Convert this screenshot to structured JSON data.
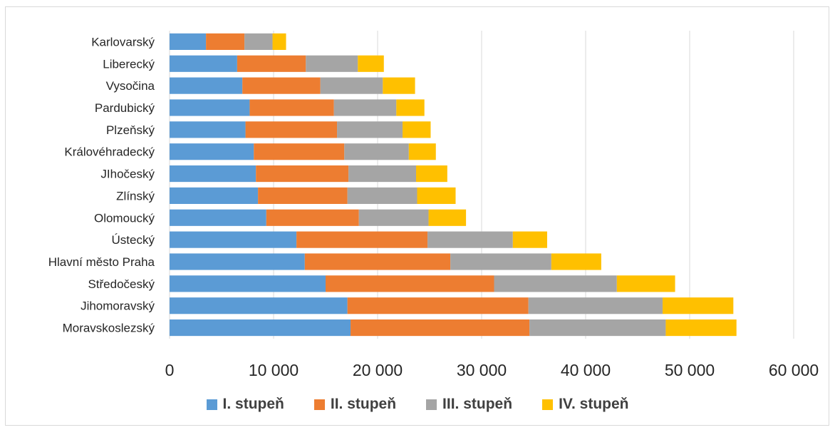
{
  "chart_data": {
    "type": "bar",
    "orientation": "horizontal",
    "stacked": true,
    "title": "",
    "xlabel": "",
    "ylabel": "",
    "xlim": [
      0,
      60000
    ],
    "x_ticks": [
      0,
      10000,
      20000,
      30000,
      40000,
      50000,
      60000
    ],
    "x_tick_labels": [
      "0",
      "10 000",
      "20 000",
      "30 000",
      "40 000",
      "50 000",
      "60 000"
    ],
    "grid": "vertical",
    "legend_position": "bottom",
    "categories": [
      "Karlovarský",
      "Liberecký",
      "Vysočina",
      "Pardubický",
      "Plzeňský",
      "Královéhradecký",
      "JIhočeský",
      "Zlínský",
      "Olomoucký",
      "Ústecký",
      "Hlavní město Praha",
      "Středočeský",
      "Jihomoravský",
      "Moravskoslezský"
    ],
    "series": [
      {
        "name": "I. stupeň",
        "color": "#5b9bd5",
        "values": [
          3500,
          6500,
          7000,
          7700,
          7300,
          8100,
          8300,
          8500,
          9300,
          12200,
          13000,
          15000,
          17100,
          17400
        ]
      },
      {
        "name": "II. stupeň",
        "color": "#ed7d31",
        "values": [
          3700,
          6600,
          7500,
          8100,
          8800,
          8700,
          8900,
          8600,
          8900,
          12600,
          14000,
          16200,
          17400,
          17200
        ]
      },
      {
        "name": "III. stupeň",
        "color": "#a5a5a5",
        "values": [
          2700,
          5000,
          6000,
          6000,
          6300,
          6200,
          6500,
          6700,
          6700,
          8200,
          9700,
          11800,
          12900,
          13100
        ]
      },
      {
        "name": "IV. stupeň",
        "color": "#ffc000",
        "values": [
          1300,
          2500,
          3100,
          2700,
          2700,
          2600,
          3000,
          3700,
          3600,
          3300,
          4800,
          5600,
          6800,
          6800
        ]
      }
    ]
  }
}
